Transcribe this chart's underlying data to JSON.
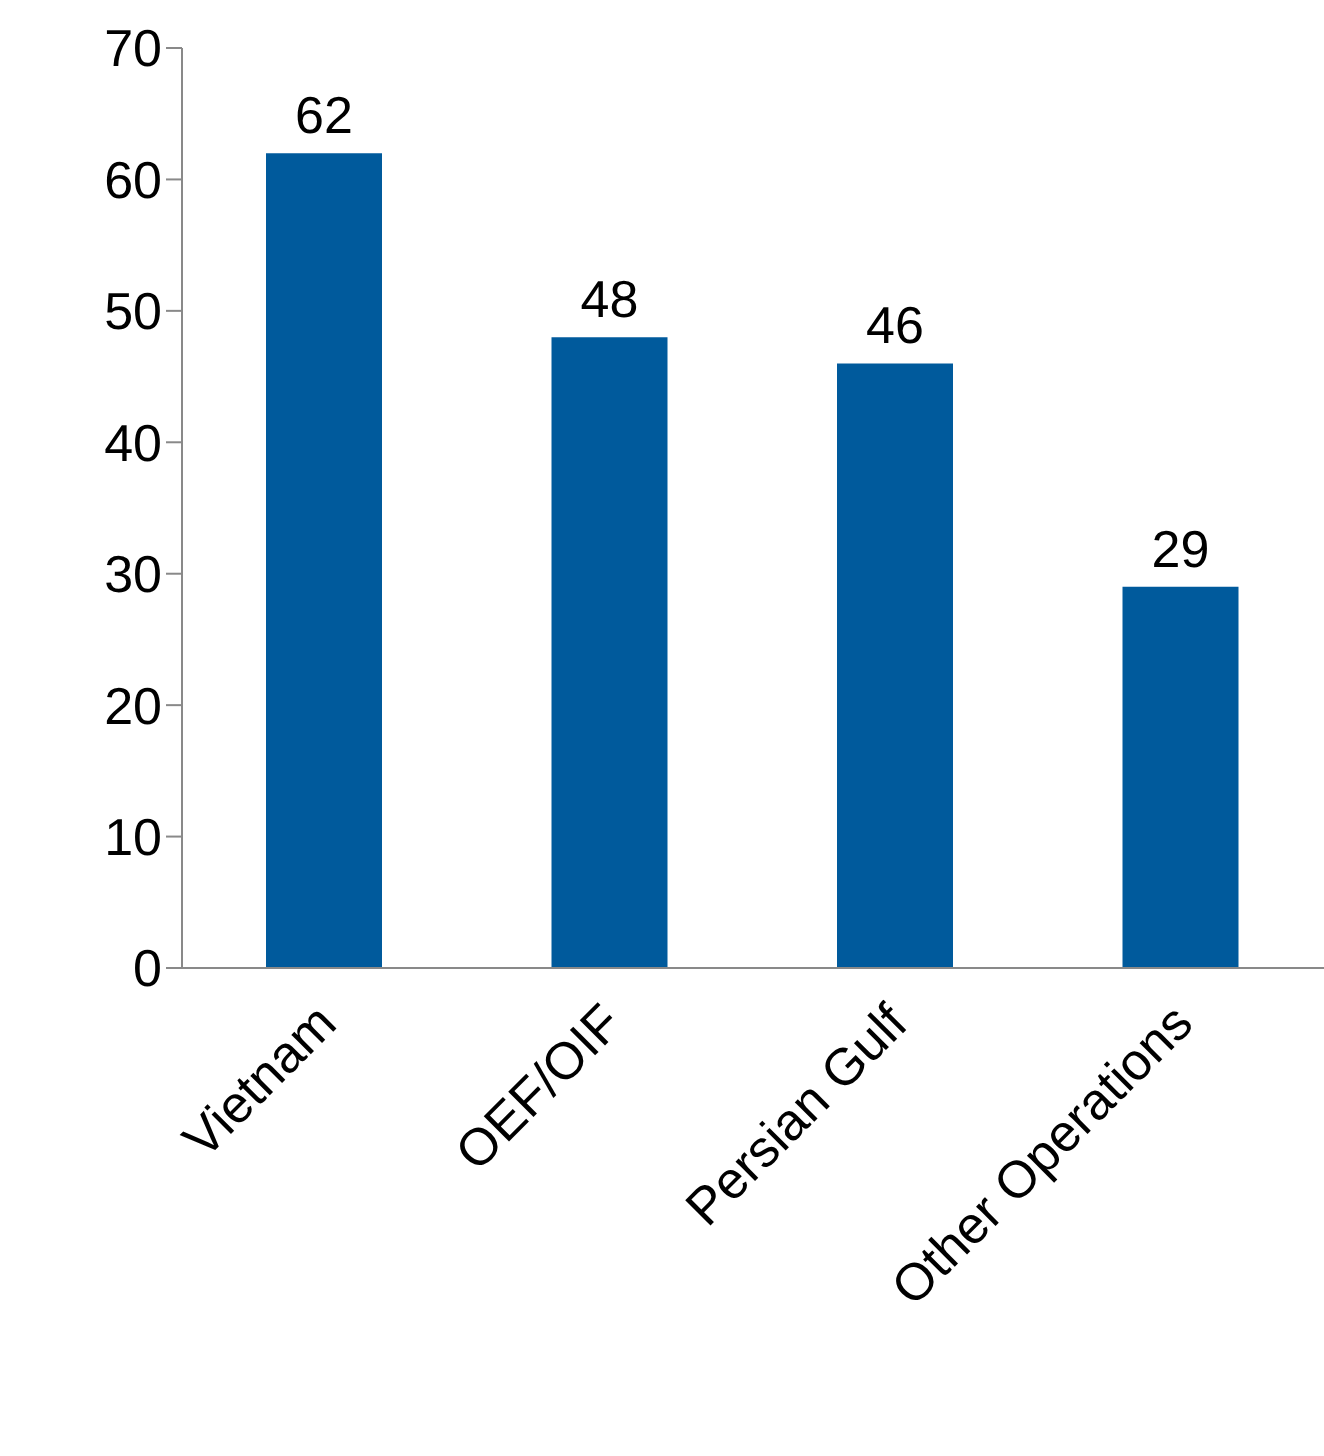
{
  "chart_data": {
    "type": "bar",
    "categories": [
      "Vietnam",
      "OEF/OIF",
      "Persian Gulf",
      "Other Operations"
    ],
    "values": [
      62,
      48,
      46,
      29
    ],
    "color": "#005a9c",
    "ylim": [
      0,
      70
    ],
    "yticks": [
      0,
      10,
      20,
      30,
      40,
      50,
      60,
      70
    ],
    "data_labels": true
  }
}
